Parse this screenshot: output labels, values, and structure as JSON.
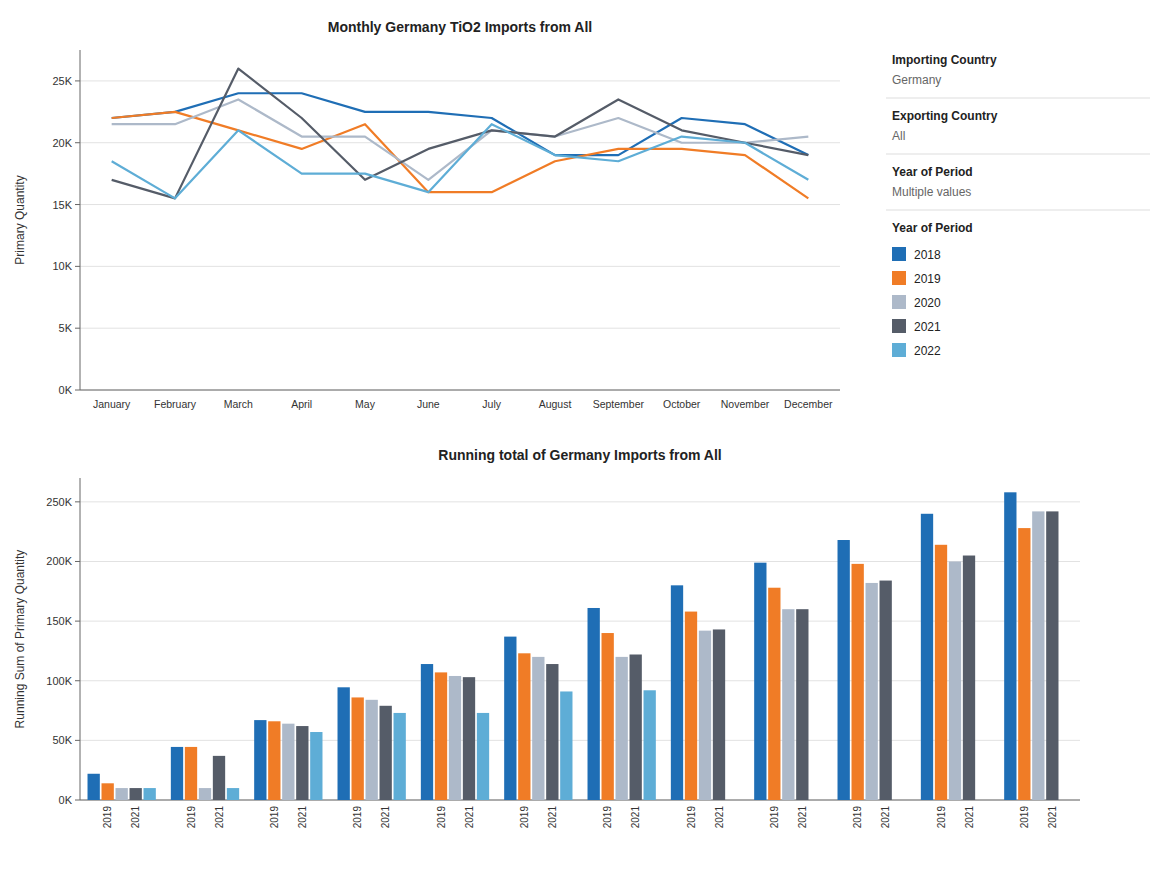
{
  "chart_data": [
    {
      "type": "line",
      "title": "Monthly Germany TiO2 Imports from All",
      "y_label": "Primary Quantity",
      "categories": [
        "January",
        "February",
        "March",
        "April",
        "May",
        "June",
        "July",
        "August",
        "September",
        "October",
        "November",
        "December"
      ],
      "series": [
        {
          "name": "2018",
          "color": "#1f6eb5",
          "values": [
            22000,
            22500,
            24000,
            24000,
            22500,
            22500,
            22000,
            19000,
            19000,
            22000,
            21500,
            19000
          ]
        },
        {
          "name": "2019",
          "color": "#f07c26",
          "values": [
            22000,
            22500,
            21000,
            19500,
            21500,
            16000,
            16000,
            18500,
            19500,
            19500,
            19000,
            15500
          ]
        },
        {
          "name": "2020",
          "color": "#adb9c9",
          "values": [
            21500,
            21500,
            23500,
            20500,
            20500,
            17000,
            21000,
            20500,
            22000,
            20000,
            20000,
            20500
          ]
        },
        {
          "name": "2021",
          "color": "#555c68",
          "values": [
            17000,
            15500,
            26000,
            22000,
            17000,
            19500,
            21000,
            20500,
            23500,
            21000,
            20000,
            19000
          ]
        },
        {
          "name": "2022",
          "color": "#5eadd6",
          "values": [
            18500,
            15500,
            21000,
            17500,
            17500,
            16000,
            21500,
            19000,
            18500,
            20500,
            20000,
            17000
          ]
        }
      ],
      "ylim": [
        0,
        27500
      ],
      "yticks": [
        {
          "value": 0,
          "label": "0K"
        },
        {
          "value": 5000,
          "label": "5K"
        },
        {
          "value": 10000,
          "label": "10K"
        },
        {
          "value": 15000,
          "label": "15K"
        },
        {
          "value": 20000,
          "label": "20K"
        },
        {
          "value": 25000,
          "label": "25K"
        }
      ],
      "grid": true,
      "legend": "right",
      "annotations": [
        "Importing Country",
        "Germany",
        "Exporting Country",
        "All",
        "Year of Period",
        "Multiple values",
        "Year of Period"
      ]
    },
    {
      "type": "bar",
      "title": "Running total of Germany Imports from All",
      "y_label": "Running Sum of Primary Quantity",
      "categories": [
        null,
        null,
        null,
        null,
        null,
        null,
        null,
        null,
        null,
        null,
        null,
        null
      ],
      "series": [
        {
          "name": "2018",
          "color": "#1f6eb5",
          "values": [
            22000,
            44500,
            67000,
            94500,
            114000,
            137000,
            161000,
            180000,
            199000,
            218000,
            240000,
            258000
          ]
        },
        {
          "name": "2019",
          "color": "#f07c26",
          "values": [
            14000,
            44500,
            66000,
            86000,
            107000,
            123000,
            140000,
            158000,
            178000,
            198000,
            214000,
            228000
          ]
        },
        {
          "name": "2020",
          "color": "#adb9c9",
          "values": [
            10000,
            10000,
            64000,
            84000,
            104000,
            120000,
            120000,
            142000,
            160000,
            182000,
            200000,
            242000
          ]
        },
        {
          "name": "2021",
          "color": "#555c68",
          "values": [
            10000,
            37000,
            62000,
            79000,
            103000,
            114000,
            122000,
            143000,
            160000,
            184000,
            205000,
            242000
          ]
        },
        {
          "name": "2022",
          "color": "#5eadd6",
          "values": [
            10000,
            10000,
            57000,
            73000,
            73000,
            91000,
            92000,
            0,
            0,
            0,
            0,
            0
          ]
        }
      ],
      "ylim": [
        0,
        270000
      ],
      "yticks": [
        {
          "value": 0,
          "label": "0K"
        },
        {
          "value": 50000,
          "label": "50K"
        },
        {
          "value": 100000,
          "label": "100K"
        },
        {
          "value": 150000,
          "label": "150K"
        },
        {
          "value": 200000,
          "label": "200K"
        },
        {
          "value": 250000,
          "label": "250K"
        }
      ],
      "grid": true
    }
  ]
}
